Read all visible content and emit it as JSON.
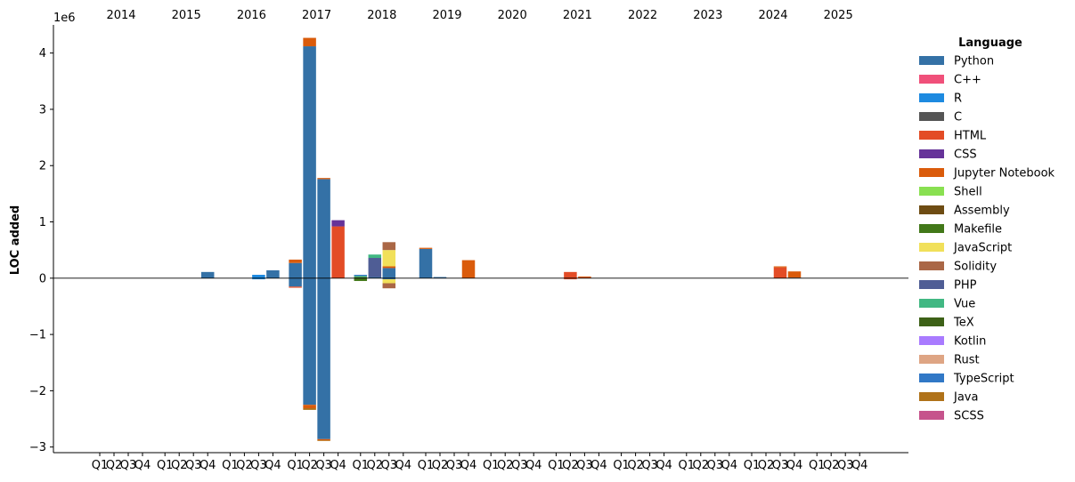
{
  "chart_data": {
    "type": "bar",
    "stacked": true,
    "ylabel": "LOC added",
    "y_multiplier_label": "1e6",
    "ylim": [
      -3100000,
      4500000
    ],
    "yticks": [
      -3000000,
      -2000000,
      -1000000,
      0,
      1000000,
      2000000,
      3000000,
      4000000
    ],
    "ytick_labels": [
      "−3",
      "−2",
      "−1",
      "0",
      "1",
      "2",
      "3",
      "4"
    ],
    "years": [
      "2014",
      "2015",
      "2016",
      "2017",
      "2018",
      "2019",
      "2020",
      "2021",
      "2022",
      "2023",
      "2024",
      "2025"
    ],
    "quarters": [
      "Q1",
      "Q2",
      "Q3",
      "Q4"
    ],
    "legend_title": "Language",
    "legend_position": "right",
    "grid": false,
    "series": [
      {
        "name": "Python",
        "color": "#3471a6",
        "positive": {
          "2014Q4": 0,
          "2015Q1": 0,
          "2015Q4": 110000,
          "2016Q4": 140000,
          "2017Q1": 270000,
          "2017Q2": 4120000,
          "2017Q3": 1760000,
          "2018Q2": 20000,
          "2018Q3": 180000,
          "2019Q1": 520000,
          "2019Q2": 20000,
          "2024Q4": 10000
        },
        "negative": {
          "2017Q1": -150000,
          "2017Q2": -2250000,
          "2017Q3": -2860000,
          "2018Q3": -20000
        }
      },
      {
        "name": "C++",
        "color": "#f0507a",
        "positive": {},
        "negative": {}
      },
      {
        "name": "R",
        "color": "#1d8ae0",
        "positive": {
          "2016Q3": 60000
        },
        "negative": {
          "2016Q3": -20000
        }
      },
      {
        "name": "C",
        "color": "#555555",
        "positive": {
          "2018Q1": 10000
        },
        "negative": {}
      },
      {
        "name": "HTML",
        "color": "#e34c26",
        "positive": {
          "2017Q4": 920000,
          "2021Q2": 110000,
          "2024Q3": 190000
        },
        "negative": {
          "2017Q1": -20000,
          "2021Q2": -20000
        }
      },
      {
        "name": "CSS",
        "color": "#663399",
        "positive": {
          "2017Q4": 110000
        },
        "negative": {}
      },
      {
        "name": "Jupyter Notebook",
        "color": "#da5b0b",
        "positive": {
          "2017Q1": 60000,
          "2017Q2": 150000,
          "2017Q3": 20000,
          "2018Q3": 30000,
          "2019Q1": 20000,
          "2019Q4": 320000,
          "2021Q3": 30000,
          "2024Q3": 20000,
          "2024Q4": 110000
        },
        "negative": {
          "2017Q2": -60000,
          "2017Q3": -20000
        }
      },
      {
        "name": "Shell",
        "color": "#89e051",
        "positive": {},
        "negative": {}
      },
      {
        "name": "Assembly",
        "color": "#6e4c13",
        "positive": {},
        "negative": {}
      },
      {
        "name": "Makefile",
        "color": "#427819",
        "positive": {
          "2018Q1": 10000
        },
        "negative": {
          "2018Q1": -50000
        }
      },
      {
        "name": "JavaScript",
        "color": "#f1e05a",
        "positive": {
          "2018Q3": 290000
        },
        "negative": {
          "2018Q3": -70000
        }
      },
      {
        "name": "Solidity",
        "color": "#aa6746",
        "positive": {
          "2018Q3": 140000
        },
        "negative": {
          "2018Q3": -90000
        }
      },
      {
        "name": "PHP",
        "color": "#4f5d95",
        "positive": {
          "2018Q2": 340000
        },
        "negative": {}
      },
      {
        "name": "Vue",
        "color": "#41b883",
        "positive": {
          "2018Q1": 20000,
          "2018Q2": 60000
        },
        "negative": {}
      },
      {
        "name": "TeX",
        "color": "#3d6117",
        "positive": {},
        "negative": {}
      },
      {
        "name": "Kotlin",
        "color": "#a97bff",
        "positive": {},
        "negative": {}
      },
      {
        "name": "Rust",
        "color": "#dea584",
        "positive": {},
        "negative": {}
      },
      {
        "name": "TypeScript",
        "color": "#3178c6",
        "positive": {
          "2018Q1": 20000
        },
        "negative": {}
      },
      {
        "name": "Java",
        "color": "#b07219",
        "positive": {},
        "negative": {
          "2017Q2": -30000,
          "2017Q3": -10000
        }
      },
      {
        "name": "SCSS",
        "color": "#c6538c",
        "positive": {},
        "negative": {}
      }
    ]
  }
}
